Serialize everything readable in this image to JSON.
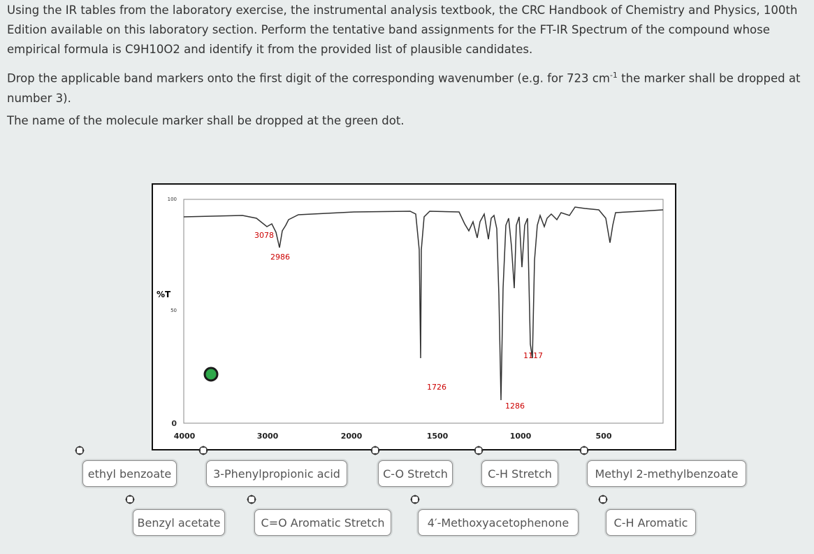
{
  "instructions": {
    "intro": "Using the IR tables from the laboratory exercise, the instrumental analysis textbook, the CRC Handbook of Chemistry and Physics, 100th Edition available on this laboratory section.  Perform the tentative band assignments for the FT-IR Spectrum of the compound whose empirical formula is C9H10O2 and identify it from the provided list of plausible candidates.",
    "drop_note": {
      "before": "Drop the applicable band markers onto the first digit of the corresponding wavenumber (e.g.  for 723 cm",
      "superscript": "-1",
      "after": " the marker shall be dropped at number 3)."
    },
    "dot_note": "The name of the molecule marker shall be dropped at the green dot."
  },
  "spectrum": {
    "y_axis_label": "%T",
    "y_ticks": [
      "100",
      "50",
      "0"
    ],
    "x_ticks": [
      "4000",
      "3000",
      "2000",
      "1500",
      "1000",
      "500"
    ],
    "peak_labels": [
      "3078",
      "2986",
      "1117",
      "1726",
      "1286"
    ]
  },
  "markers": [
    "ethyl benzoate",
    "3-Phenylpropionic acid",
    "C-O Stretch",
    "C-H Stretch",
    "Methyl 2-methylbenzoate",
    "Benzyl acetate",
    "C=O Aromatic Stretch",
    "4′-Methoxyacetophenone",
    "C-H Aromatic"
  ]
}
